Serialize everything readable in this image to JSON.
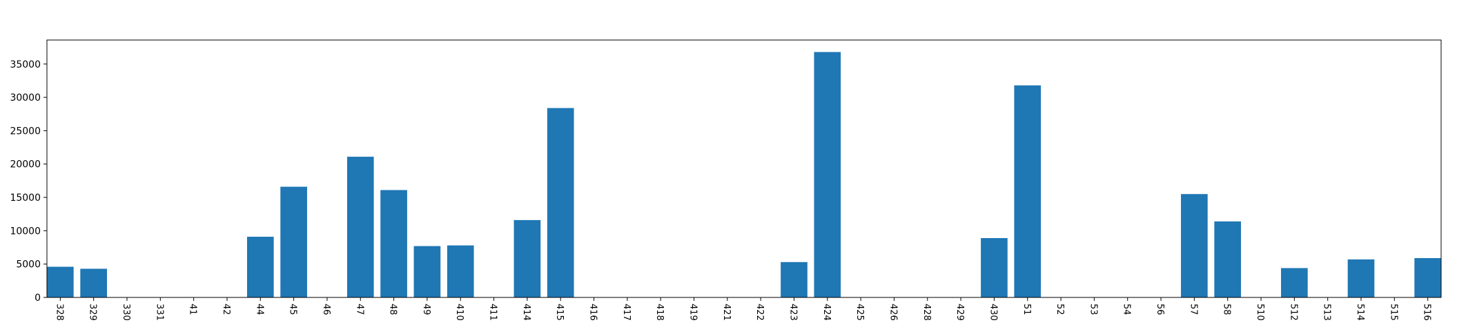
{
  "chart_data": {
    "type": "bar",
    "title": "",
    "xlabel": "",
    "ylabel": "",
    "categories": [
      "328",
      "329",
      "330",
      "331",
      "41",
      "42",
      "44",
      "45",
      "46",
      "47",
      "48",
      "49",
      "410",
      "411",
      "414",
      "415",
      "416",
      "417",
      "418",
      "419",
      "421",
      "422",
      "423",
      "424",
      "425",
      "426",
      "428",
      "429",
      "430",
      "51",
      "52",
      "53",
      "54",
      "56",
      "57",
      "58",
      "510",
      "512",
      "513",
      "514",
      "515",
      "516"
    ],
    "values": [
      4600,
      4300,
      0,
      0,
      0,
      0,
      9100,
      16600,
      0,
      21100,
      16100,
      7700,
      7800,
      0,
      11600,
      28400,
      0,
      0,
      0,
      0,
      0,
      0,
      5300,
      36800,
      0,
      0,
      0,
      0,
      8900,
      31800,
      0,
      0,
      0,
      0,
      15500,
      11400,
      0,
      4400,
      0,
      5700,
      0,
      5900
    ],
    "ylim": [
      0,
      38600
    ],
    "yticks": [
      0,
      5000,
      10000,
      15000,
      20000,
      25000,
      30000,
      35000
    ],
    "ytick_labels": [
      "0",
      "5000",
      "10000",
      "15000",
      "20000",
      "25000",
      "30000",
      "35000"
    ],
    "grid": false,
    "legend": "none",
    "bar_color": "#1f77b4",
    "axis_color": "#000000",
    "x_tick_rotation": "vertical"
  }
}
